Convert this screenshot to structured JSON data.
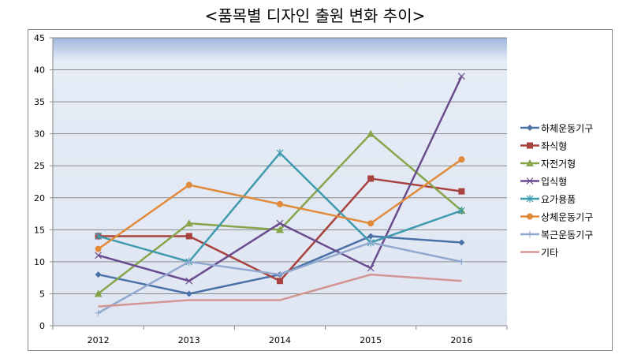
{
  "chart_data": {
    "type": "line",
    "title": "<품목별 디자인 출원 변화 추이>",
    "categories": [
      "2012",
      "2013",
      "2014",
      "2015",
      "2016"
    ],
    "ylim": [
      0,
      45
    ],
    "yticks": [
      0,
      5,
      10,
      15,
      20,
      25,
      30,
      35,
      40,
      45
    ],
    "grid": true,
    "legend": "right",
    "series": [
      {
        "name": "하체운동기구",
        "values": [
          8,
          5,
          8,
          14,
          13
        ],
        "color": "#4a72a8",
        "marker": "diamond"
      },
      {
        "name": "좌식형",
        "values": [
          14,
          14,
          7,
          23,
          21
        ],
        "color": "#a9433f",
        "marker": "square"
      },
      {
        "name": "자전거형",
        "values": [
          5,
          16,
          15,
          30,
          18
        ],
        "color": "#86a54a",
        "marker": "triangle"
      },
      {
        "name": "입식형",
        "values": [
          11,
          7,
          16,
          9,
          39
        ],
        "color": "#6b4c8e",
        "marker": "x"
      },
      {
        "name": "요가용품",
        "values": [
          14,
          10,
          27,
          13,
          18
        ],
        "color": "#3e9aad",
        "marker": "asterisk"
      },
      {
        "name": "상체운동기구",
        "values": [
          12,
          22,
          19,
          16,
          26
        ],
        "color": "#e08a3a",
        "marker": "circle"
      },
      {
        "name": "복근운동기구",
        "values": [
          2,
          10,
          8,
          13,
          10
        ],
        "color": "#92a9cf",
        "marker": "plus"
      },
      {
        "name": "기타",
        "values": [
          3,
          4,
          4,
          8,
          7
        ],
        "color": "#d39593",
        "marker": "none"
      }
    ]
  }
}
